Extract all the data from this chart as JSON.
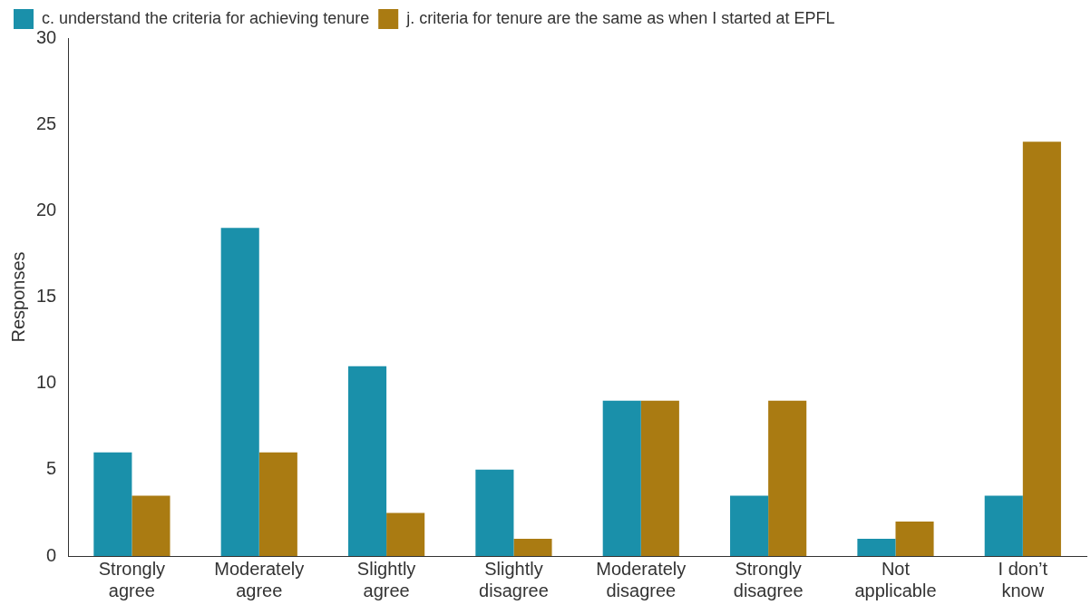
{
  "chart_data": {
    "type": "bar",
    "ylabel": "Responses",
    "categories": [
      "Strongly agree",
      "Moderately agree",
      "Slightly agree",
      "Slightly disagree",
      "Moderately disagree",
      "Strongly disagree",
      "Not applicable",
      "I don’t know"
    ],
    "series": [
      {
        "name": "c. understand the criteria for achieving tenure",
        "color": "#1a90aa",
        "values": [
          6,
          19,
          11,
          5,
          9,
          3.5,
          1,
          3.5
        ]
      },
      {
        "name": "j. criteria for tenure are the same as when I started at EPFL",
        "color": "#aa7b12",
        "values": [
          3.5,
          6,
          2.5,
          1,
          9,
          9,
          2,
          24
        ]
      }
    ],
    "ylim": [
      0,
      30
    ],
    "yticks": [
      0,
      5,
      10,
      15,
      20,
      25,
      30
    ],
    "grid": false,
    "legend": "top left"
  }
}
